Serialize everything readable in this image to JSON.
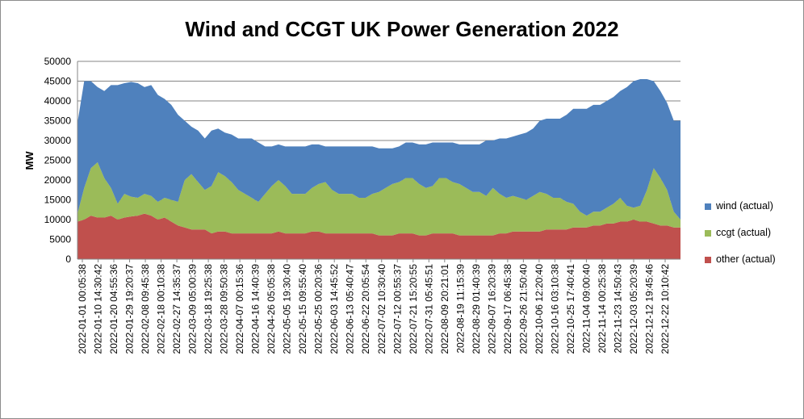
{
  "colors": {
    "wind": "#4f81bd",
    "ccgt": "#9bbb59",
    "other": "#c0504d",
    "grid": "#868686"
  },
  "chart_data": {
    "type": "area",
    "stacked": true,
    "title": "Wind and CCGT UK Power Generation 2022",
    "xlabel": "",
    "ylabel": "MW",
    "ylim": [
      0,
      50000
    ],
    "yticks": [
      0,
      5000,
      10000,
      15000,
      20000,
      25000,
      30000,
      35000,
      40000,
      45000,
      50000
    ],
    "grid": true,
    "legend_position": "right",
    "x_tick_labels": [
      "2022-01-01 00:05:38",
      "2022-01-10 14:30:42",
      "2022-01-20 04:55:36",
      "2022-01-29 19:20:37",
      "2022-02-08 09:45:38",
      "2022-02-18 00:10:38",
      "2022-02-27 14:35:37",
      "2022-03-09 05:00:39",
      "2022-03-18 19:25:38",
      "2022-03-28 09:50:38",
      "2022-04-07 00:15:36",
      "2022-04-16 14:40:39",
      "2022-04-26 05:05:38",
      "2022-05-05 19:30:40",
      "2022-05-15 09:55:40",
      "2022-05-25 00:20:36",
      "2022-06-03 14:45:52",
      "2022-06-13 05:40:47",
      "2022-06-22 20:05:54",
      "2022-07-02 10:30:40",
      "2022-07-12 00:55:37",
      "2022-07-21 15:20:55",
      "2022-07-31 05:45:51",
      "2022-08-09 20:21:01",
      "2022-08-19 11:15:39",
      "2022-08-29 01:40:39",
      "2022-09-07 16:20:39",
      "2022-09-17 06:45:38",
      "2022-09-26 21:50:40",
      "2022-10-06 12:20:40",
      "2022-10-16 03:10:38",
      "2022-10-25 17:40:41",
      "2022-11-04 09:00:40",
      "2022-11-14 00:25:38",
      "2022-11-23 14:50:43",
      "2022-12-03 05:20:39",
      "2022-12-12 19:45:46",
      "2022-12-22 10:10:42"
    ],
    "series": [
      {
        "name": "other (actual)",
        "values": [
          9500,
          10000,
          11000,
          10500,
          10500,
          11000,
          10000,
          10500,
          10800,
          11000,
          11500,
          11000,
          10000,
          10500,
          9500,
          8500,
          8000,
          7500,
          7500,
          7500,
          6500,
          7000,
          7000,
          6500,
          6500,
          6500,
          6500,
          6500,
          6500,
          6500,
          7000,
          6500,
          6500,
          6500,
          6500,
          7000,
          7000,
          6500,
          6500,
          6500,
          6500,
          6500,
          6500,
          6500,
          6500,
          6000,
          6000,
          6000,
          6500,
          6500,
          6500,
          6000,
          6000,
          6500,
          6500,
          6500,
          6500,
          6000,
          6000,
          6000,
          6000,
          6000,
          6000,
          6500,
          6500,
          7000,
          7000,
          7000,
          7000,
          7000,
          7500,
          7500,
          7500,
          7500,
          8000,
          8000,
          8000,
          8500,
          8500,
          9000,
          9000,
          9500,
          9500,
          10000,
          9500,
          9500,
          9000,
          8500,
          8500,
          8000,
          8000
        ]
      },
      {
        "name": "ccgt (actual)",
        "values": [
          2000,
          8000,
          12000,
          14000,
          10000,
          7000,
          4000,
          6000,
          5000,
          4500,
          5000,
          5000,
          4500,
          5000,
          5500,
          6000,
          12000,
          14000,
          12000,
          10000,
          12000,
          15000,
          14000,
          13000,
          11000,
          10000,
          9000,
          8000,
          10000,
          12000,
          13000,
          12000,
          10000,
          10000,
          10000,
          11000,
          12000,
          13000,
          11000,
          10000,
          10000,
          10000,
          9000,
          9000,
          10000,
          11000,
          12000,
          13000,
          13000,
          14000,
          14000,
          13000,
          12000,
          12000,
          14000,
          14000,
          13000,
          13000,
          12000,
          11000,
          11000,
          10000,
          12000,
          10000,
          9000,
          9000,
          8500,
          8000,
          9000,
          10000,
          9000,
          8000,
          8000,
          7000,
          6000,
          4000,
          3000,
          3500,
          3500,
          4000,
          5000,
          6000,
          4000,
          3000,
          4000,
          8000,
          14000,
          12000,
          9000,
          4000,
          2000
        ]
      },
      {
        "name": "wind (actual)",
        "values": [
          23000,
          27000,
          22000,
          19000,
          22000,
          26000,
          30000,
          28000,
          29000,
          29000,
          27000,
          28000,
          27000,
          25000,
          24000,
          22000,
          15000,
          12000,
          13000,
          13000,
          14000,
          11000,
          11000,
          12000,
          13000,
          14000,
          15000,
          15000,
          12000,
          10000,
          9000,
          10000,
          12000,
          12000,
          12000,
          11000,
          10000,
          9000,
          11000,
          12000,
          12000,
          12000,
          13000,
          13000,
          12000,
          11000,
          10000,
          9000,
          9000,
          9000,
          9000,
          10000,
          11000,
          11000,
          9000,
          9000,
          10000,
          10000,
          11000,
          12000,
          12000,
          14000,
          12000,
          14000,
          15000,
          15000,
          16000,
          17000,
          17000,
          18000,
          19000,
          20000,
          20000,
          22000,
          24000,
          26000,
          27000,
          27000,
          27000,
          27000,
          27000,
          27000,
          30000,
          32000,
          32000,
          28000,
          22000,
          22000,
          22000,
          23000,
          25000
        ]
      }
    ]
  }
}
